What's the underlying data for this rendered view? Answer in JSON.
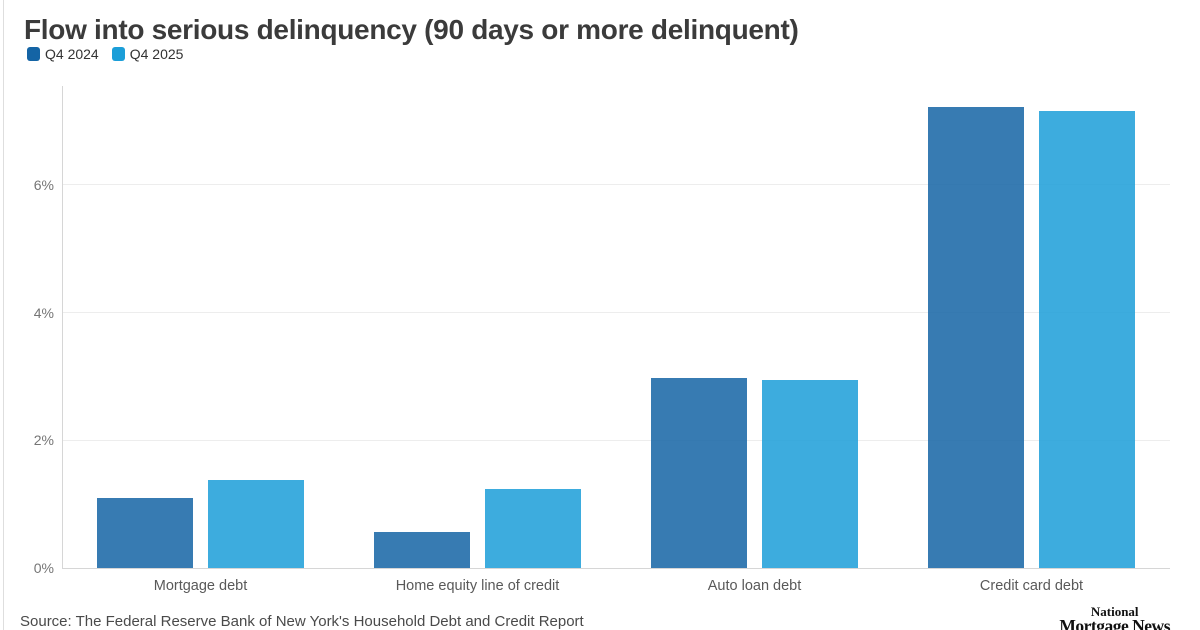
{
  "header": {
    "title": "Flow into serious delinquency (90 days or more delinquent)"
  },
  "legend": [
    {
      "label": "Q4 2024",
      "color": "#1464a5"
    },
    {
      "label": "Q4 2025",
      "color": "#1b9ed8"
    }
  ],
  "chart_data": {
    "type": "bar",
    "title": "Flow into serious delinquency (90 days or more delinquent)",
    "categories": [
      "Mortgage debt",
      "Home equity line of credit",
      "Auto loan debt",
      "Credit card debt"
    ],
    "series": [
      {
        "name": "Q4 2024",
        "color": "#1464a5",
        "values": [
          1.1,
          0.57,
          2.98,
          7.22
        ]
      },
      {
        "name": "Q4 2025",
        "color": "#1b9ed8",
        "values": [
          1.38,
          1.24,
          2.95,
          7.16
        ]
      }
    ],
    "xlabel": "",
    "ylabel": "",
    "yticks": [
      "0%",
      "2%",
      "4%",
      "6%"
    ],
    "ytick_values": [
      0,
      2,
      4,
      6
    ],
    "ylim": [
      0,
      7.55
    ],
    "grid": "horizontal",
    "legend_position": "top-left",
    "bar_opacity": 0.85
  },
  "footer": {
    "source": "Source: The Federal Reserve Bank of New York's Household Debt and Credit Report",
    "logo_line1": "National",
    "logo_line2": "Mortgage News"
  }
}
